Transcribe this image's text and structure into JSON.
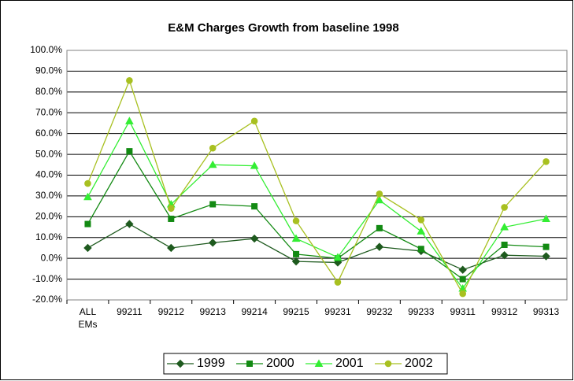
{
  "chart_data": {
    "type": "line",
    "title": "E&M Charges Growth from baseline 1998",
    "categories": [
      "ALL EMs",
      "99211",
      "99212",
      "99213",
      "99214",
      "99215",
      "99231",
      "99232",
      "99233",
      "99311",
      "99312",
      "99313"
    ],
    "series": [
      {
        "name": "1999",
        "color": "#1e5a1e",
        "marker": "diamond",
        "values": [
          5,
          16.5,
          5,
          7.5,
          9.5,
          -1.5,
          -2,
          5.5,
          3.5,
          -5.5,
          1.5,
          1
        ]
      },
      {
        "name": "2000",
        "color": "#138a13",
        "marker": "square",
        "values": [
          16.5,
          51.5,
          19,
          26,
          25,
          2,
          0,
          14.5,
          4.5,
          -10,
          6.5,
          5.5
        ]
      },
      {
        "name": "2001",
        "color": "#33ee33",
        "marker": "triangle",
        "values": [
          29.5,
          66,
          26,
          45,
          44.5,
          9.5,
          0.5,
          28,
          13,
          -14.5,
          15,
          19
        ]
      },
      {
        "name": "2002",
        "color": "#a8c020",
        "marker": "circle",
        "values": [
          36,
          85.5,
          24,
          53,
          66,
          18,
          -11.5,
          31,
          18.5,
          -17,
          24.5,
          46.5
        ]
      }
    ],
    "ylim": [
      -20,
      100
    ],
    "yticks": [
      {
        "value": -20,
        "label": "-20.0%"
      },
      {
        "value": -10,
        "label": "-10.0%"
      },
      {
        "value": 0,
        "label": "0.0%"
      },
      {
        "value": 10,
        "label": "10.0%"
      },
      {
        "value": 20,
        "label": "20.0%"
      },
      {
        "value": 30,
        "label": "30.0%"
      },
      {
        "value": 40,
        "label": "40.0%"
      },
      {
        "value": 50,
        "label": "50.0%"
      },
      {
        "value": 60,
        "label": "60.0%"
      },
      {
        "value": 70,
        "label": "70.0%"
      },
      {
        "value": 80,
        "label": "80.0%"
      },
      {
        "value": 90,
        "label": "90.0%"
      },
      {
        "value": 100,
        "label": "100.0%"
      }
    ],
    "grid": true,
    "legend": "bottom"
  }
}
